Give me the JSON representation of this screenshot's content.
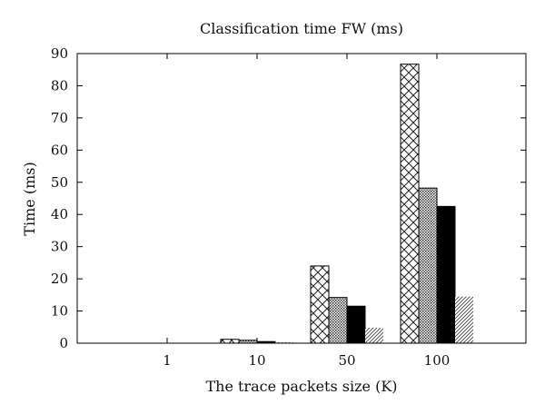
{
  "chart_data": {
    "type": "bar",
    "title": "Classification time FW (ms)",
    "xlabel": "The trace packets size (K)",
    "ylabel": "Time (ms)",
    "categories": [
      "1",
      "10",
      "50",
      "100"
    ],
    "ylim": [
      0,
      90
    ],
    "yticks": [
      0,
      10,
      20,
      30,
      40,
      50,
      60,
      70,
      80,
      90
    ],
    "grid": false,
    "legend": "none",
    "series": [
      {
        "pattern": "crosshatch",
        "color": "#000000",
        "values": [
          0,
          1.2,
          24,
          86.7
        ]
      },
      {
        "pattern": "dense-dots",
        "color": "#000000",
        "values": [
          0,
          0.9,
          14.2,
          48.2
        ]
      },
      {
        "pattern": "solid",
        "color": "#000000",
        "values": [
          0,
          0.5,
          11.5,
          42.5
        ]
      },
      {
        "pattern": "diagonal-light",
        "color": "#000000",
        "values": [
          0,
          0.3,
          4.8,
          14.5
        ]
      }
    ]
  }
}
